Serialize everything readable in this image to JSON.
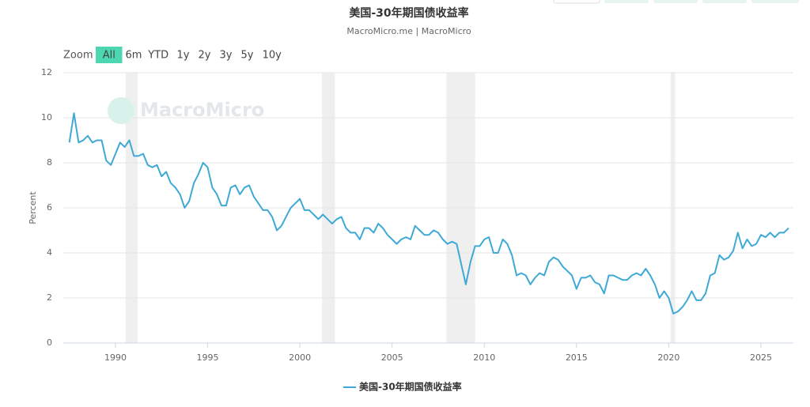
{
  "chart_data": {
    "type": "line",
    "title": "美国-30年期国债收益率",
    "subtitle": "MacroMicro.me | MacroMicro",
    "watermark": "MacroMicro",
    "y_label": "Percent",
    "range_selector": {
      "label": "Zoom",
      "buttons": [
        "All",
        "6m",
        "YTD",
        "1y",
        "2y",
        "3y",
        "5y",
        "10y"
      ],
      "selected": 0
    },
    "grid": true,
    "xlim": [
      1987.17,
      2026.76
    ],
    "xticks": [
      1990,
      1995,
      2000,
      2005,
      2010,
      2015,
      2020,
      2025
    ],
    "ylim": [
      0,
      12
    ],
    "yticks": [
      0,
      2,
      4,
      6,
      8,
      10,
      12
    ],
    "shaded_periods": [
      [
        1990.55,
        1991.2
      ],
      [
        2001.2,
        2001.9
      ],
      [
        2007.95,
        2009.5
      ],
      [
        2020.1,
        2020.35
      ]
    ],
    "shade_color": "#efefef",
    "x": [
      1987.5,
      1987.75,
      1988,
      1988.25,
      1988.5,
      1988.75,
      1989,
      1989.25,
      1989.5,
      1989.75,
      1990,
      1990.25,
      1990.5,
      1990.75,
      1991,
      1991.25,
      1991.5,
      1991.75,
      1992,
      1992.25,
      1992.5,
      1992.75,
      1993,
      1993.25,
      1993.5,
      1993.75,
      1994,
      1994.25,
      1994.5,
      1994.75,
      1995,
      1995.25,
      1995.5,
      1995.75,
      1996,
      1996.25,
      1996.5,
      1996.75,
      1997,
      1997.25,
      1997.5,
      1997.75,
      1998,
      1998.25,
      1998.5,
      1998.75,
      1999,
      1999.25,
      1999.5,
      1999.75,
      2000,
      2000.25,
      2000.5,
      2000.75,
      2001,
      2001.25,
      2001.5,
      2001.75,
      2002,
      2002.25,
      2002.5,
      2002.75,
      2003,
      2003.25,
      2003.5,
      2003.75,
      2004,
      2004.25,
      2004.5,
      2004.75,
      2005,
      2005.25,
      2005.5,
      2005.75,
      2006,
      2006.25,
      2006.5,
      2006.75,
      2007,
      2007.25,
      2007.5,
      2007.75,
      2008,
      2008.25,
      2008.5,
      2008.75,
      2009,
      2009.25,
      2009.5,
      2009.75,
      2010,
      2010.25,
      2010.5,
      2010.75,
      2011,
      2011.25,
      2011.5,
      2011.75,
      2012,
      2012.25,
      2012.5,
      2012.75,
      2013,
      2013.25,
      2013.5,
      2013.75,
      2014,
      2014.25,
      2014.5,
      2014.75,
      2015,
      2015.25,
      2015.5,
      2015.75,
      2016,
      2016.25,
      2016.5,
      2016.75,
      2017,
      2017.25,
      2017.5,
      2017.75,
      2018,
      2018.25,
      2018.5,
      2018.75,
      2019,
      2019.25,
      2019.5,
      2019.75,
      2020,
      2020.25,
      2020.5,
      2020.75,
      2021,
      2021.25,
      2021.5,
      2021.75,
      2022,
      2022.25,
      2022.5,
      2022.75,
      2023,
      2023.25,
      2023.5,
      2023.75,
      2024,
      2024.25,
      2024.5,
      2024.75,
      2025,
      2025.25,
      2025.5,
      2025.75,
      2026,
      2026.25,
      2026.5
    ],
    "series": [
      {
        "name": "美国-30年期国债收益率",
        "color": "#3fa9d6",
        "values": [
          8.9,
          10.2,
          8.9,
          9.0,
          9.2,
          8.9,
          9.0,
          9.0,
          8.1,
          7.9,
          8.4,
          8.9,
          8.7,
          9.0,
          8.3,
          8.3,
          8.4,
          7.9,
          7.8,
          7.9,
          7.4,
          7.6,
          7.1,
          6.9,
          6.6,
          6.0,
          6.3,
          7.1,
          7.5,
          8.0,
          7.8,
          6.9,
          6.6,
          6.1,
          6.1,
          6.9,
          7.0,
          6.6,
          6.9,
          7.0,
          6.5,
          6.2,
          5.9,
          5.9,
          5.6,
          5.0,
          5.2,
          5.6,
          6.0,
          6.2,
          6.4,
          5.9,
          5.9,
          5.7,
          5.5,
          5.7,
          5.5,
          5.3,
          5.5,
          5.6,
          5.1,
          4.9,
          4.9,
          4.6,
          5.1,
          5.1,
          4.9,
          5.3,
          5.1,
          4.8,
          4.6,
          4.4,
          4.6,
          4.7,
          4.6,
          5.2,
          5.0,
          4.8,
          4.8,
          5.0,
          4.9,
          4.6,
          4.4,
          4.5,
          4.4,
          3.5,
          2.6,
          3.6,
          4.3,
          4.3,
          4.6,
          4.7,
          4.0,
          4.0,
          4.6,
          4.4,
          3.9,
          3.0,
          3.1,
          3.0,
          2.6,
          2.9,
          3.1,
          3.0,
          3.6,
          3.8,
          3.7,
          3.4,
          3.2,
          3.0,
          2.4,
          2.9,
          2.9,
          3.0,
          2.7,
          2.6,
          2.2,
          3.0,
          3.0,
          2.9,
          2.8,
          2.8,
          3.0,
          3.1,
          3.0,
          3.3,
          3.0,
          2.6,
          2.0,
          2.3,
          2.0,
          1.3,
          1.4,
          1.6,
          1.9,
          2.3,
          1.9,
          1.9,
          2.2,
          3.0,
          3.1,
          3.9,
          3.7,
          3.8,
          4.1,
          4.9,
          4.2,
          4.6,
          4.3,
          4.4,
          4.8,
          4.7,
          4.9,
          4.7,
          4.9,
          4.9,
          5.1
        ]
      }
    ]
  }
}
